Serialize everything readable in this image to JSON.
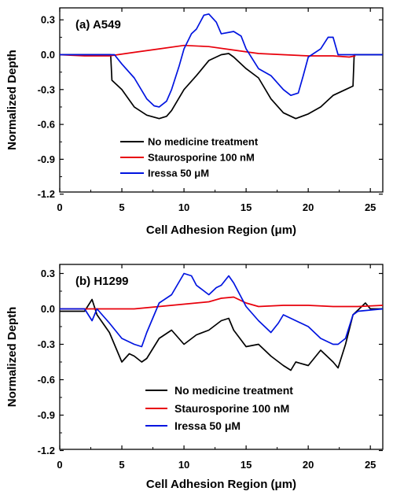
{
  "chart_data": [
    {
      "type": "line",
      "panel_label": "(a) A549",
      "xlabel": "Cell Adhesion Region (μm)",
      "ylabel": "Normalized Depth",
      "xlim": [
        0,
        26
      ],
      "ylim": [
        -1.2,
        0.4
      ],
      "xticks": [
        "0",
        "5",
        "10",
        "15",
        "20",
        "25"
      ],
      "yticks": [
        "0.3",
        "0.0",
        "-0.3",
        "-0.6",
        "-0.9",
        "-1.2"
      ],
      "legend_placement": "lower-center",
      "series": [
        {
          "name": "No medicine treatment",
          "color": "#000000",
          "points": [
            [
              0,
              0
            ],
            [
              4.1,
              0
            ],
            [
              4.2,
              -0.22
            ],
            [
              5,
              -0.3
            ],
            [
              6,
              -0.45
            ],
            [
              7,
              -0.52
            ],
            [
              8,
              -0.55
            ],
            [
              8.6,
              -0.53
            ],
            [
              9,
              -0.48
            ],
            [
              10,
              -0.3
            ],
            [
              11,
              -0.18
            ],
            [
              12,
              -0.05
            ],
            [
              13,
              0.0
            ],
            [
              13.6,
              0.01
            ],
            [
              14,
              -0.02
            ],
            [
              15,
              -0.12
            ],
            [
              16,
              -0.2
            ],
            [
              17,
              -0.38
            ],
            [
              18,
              -0.5
            ],
            [
              19,
              -0.55
            ],
            [
              20,
              -0.51
            ],
            [
              21,
              -0.45
            ],
            [
              22,
              -0.35
            ],
            [
              23,
              -0.3
            ],
            [
              23.6,
              -0.27
            ],
            [
              23.7,
              0
            ],
            [
              26,
              0
            ]
          ]
        },
        {
          "name": "Staurosporine 100 nM",
          "color": "#e8000b",
          "points": [
            [
              0,
              0
            ],
            [
              2,
              -0.01
            ],
            [
              4,
              -0.01
            ],
            [
              6,
              0.02
            ],
            [
              8,
              0.05
            ],
            [
              10,
              0.08
            ],
            [
              12,
              0.07
            ],
            [
              14,
              0.04
            ],
            [
              16,
              0.01
            ],
            [
              18,
              0
            ],
            [
              20,
              -0.01
            ],
            [
              22,
              -0.01
            ],
            [
              23.3,
              -0.02
            ],
            [
              23.8,
              -0.01
            ]
          ]
        },
        {
          "name": "Iressa 50 μM",
          "color": "#0014e0",
          "points": [
            [
              0,
              0
            ],
            [
              4.4,
              0
            ],
            [
              5,
              -0.08
            ],
            [
              6,
              -0.2
            ],
            [
              7,
              -0.38
            ],
            [
              7.6,
              -0.44
            ],
            [
              8,
              -0.45
            ],
            [
              8.6,
              -0.4
            ],
            [
              9,
              -0.3
            ],
            [
              9.6,
              -0.1
            ],
            [
              10,
              0.05
            ],
            [
              10.6,
              0.18
            ],
            [
              11,
              0.22
            ],
            [
              11.6,
              0.34
            ],
            [
              12,
              0.35
            ],
            [
              12.6,
              0.28
            ],
            [
              13,
              0.18
            ],
            [
              14,
              0.2
            ],
            [
              14.6,
              0.16
            ],
            [
              15,
              0.05
            ],
            [
              16,
              -0.12
            ],
            [
              17,
              -0.18
            ],
            [
              18,
              -0.3
            ],
            [
              18.6,
              -0.35
            ],
            [
              19.2,
              -0.33
            ],
            [
              19.6,
              -0.18
            ],
            [
              20,
              -0.02
            ],
            [
              21,
              0.05
            ],
            [
              21.6,
              0.15
            ],
            [
              22,
              0.15
            ],
            [
              22.4,
              0.0
            ],
            [
              23,
              0
            ],
            [
              26,
              0
            ]
          ]
        }
      ]
    },
    {
      "type": "line",
      "panel_label": "(b) H1299",
      "xlabel": "Cell Adhesion Region (μm)",
      "ylabel": "Normalized Depth",
      "xlim": [
        0,
        26
      ],
      "ylim": [
        -1.2,
        0.4
      ],
      "xticks": [
        "0",
        "5",
        "10",
        "15",
        "20",
        "25"
      ],
      "yticks": [
        "0.3",
        "0.0",
        "-0.3",
        "-0.6",
        "-0.9",
        "-1.2"
      ],
      "legend_placement": "lower-center",
      "series": [
        {
          "name": "No medicine treatment",
          "color": "#000000",
          "points": [
            [
              0,
              -0.02
            ],
            [
              2,
              -0.02
            ],
            [
              2.6,
              0.08
            ],
            [
              3,
              -0.05
            ],
            [
              4,
              -0.2
            ],
            [
              5,
              -0.45
            ],
            [
              5.6,
              -0.38
            ],
            [
              6,
              -0.4
            ],
            [
              6.6,
              -0.45
            ],
            [
              7,
              -0.42
            ],
            [
              8,
              -0.25
            ],
            [
              9,
              -0.18
            ],
            [
              10,
              -0.3
            ],
            [
              11,
              -0.22
            ],
            [
              12,
              -0.18
            ],
            [
              13,
              -0.1
            ],
            [
              13.6,
              -0.08
            ],
            [
              14,
              -0.18
            ],
            [
              15,
              -0.32
            ],
            [
              16,
              -0.3
            ],
            [
              17,
              -0.4
            ],
            [
              18,
              -0.48
            ],
            [
              18.6,
              -0.52
            ],
            [
              19,
              -0.45
            ],
            [
              20,
              -0.48
            ],
            [
              21,
              -0.35
            ],
            [
              22,
              -0.45
            ],
            [
              22.4,
              -0.5
            ],
            [
              23,
              -0.3
            ],
            [
              23.6,
              -0.05
            ],
            [
              24.6,
              0.05
            ],
            [
              25,
              0
            ],
            [
              26,
              0
            ]
          ]
        },
        {
          "name": "Staurosporine 100 nM",
          "color": "#e8000b",
          "points": [
            [
              0,
              0
            ],
            [
              2,
              0
            ],
            [
              4,
              0
            ],
            [
              6,
              0
            ],
            [
              8,
              0.02
            ],
            [
              10,
              0.04
            ],
            [
              12,
              0.06
            ],
            [
              13,
              0.09
            ],
            [
              14,
              0.1
            ],
            [
              15,
              0.05
            ],
            [
              16,
              0.02
            ],
            [
              18,
              0.03
            ],
            [
              20,
              0.03
            ],
            [
              22,
              0.02
            ],
            [
              24,
              0.02
            ],
            [
              26,
              0.03
            ]
          ]
        },
        {
          "name": "Iressa 50 μM",
          "color": "#0014e0",
          "points": [
            [
              0,
              0
            ],
            [
              2,
              0
            ],
            [
              2.6,
              -0.1
            ],
            [
              3,
              0.0
            ],
            [
              4,
              -0.12
            ],
            [
              5,
              -0.25
            ],
            [
              6,
              -0.3
            ],
            [
              6.6,
              -0.32
            ],
            [
              7,
              -0.2
            ],
            [
              8,
              0.05
            ],
            [
              9,
              0.12
            ],
            [
              10,
              0.3
            ],
            [
              10.6,
              0.28
            ],
            [
              11,
              0.2
            ],
            [
              12,
              0.12
            ],
            [
              12.6,
              0.18
            ],
            [
              13,
              0.2
            ],
            [
              13.6,
              0.28
            ],
            [
              14,
              0.22
            ],
            [
              15,
              0.02
            ],
            [
              16,
              -0.1
            ],
            [
              17,
              -0.2
            ],
            [
              17.6,
              -0.12
            ],
            [
              18,
              -0.05
            ],
            [
              19,
              -0.1
            ],
            [
              20,
              -0.15
            ],
            [
              21,
              -0.25
            ],
            [
              22,
              -0.3
            ],
            [
              22.4,
              -0.3
            ],
            [
              23,
              -0.25
            ],
            [
              23.6,
              -0.05
            ],
            [
              24,
              -0.02
            ],
            [
              26,
              0
            ]
          ]
        }
      ]
    }
  ]
}
